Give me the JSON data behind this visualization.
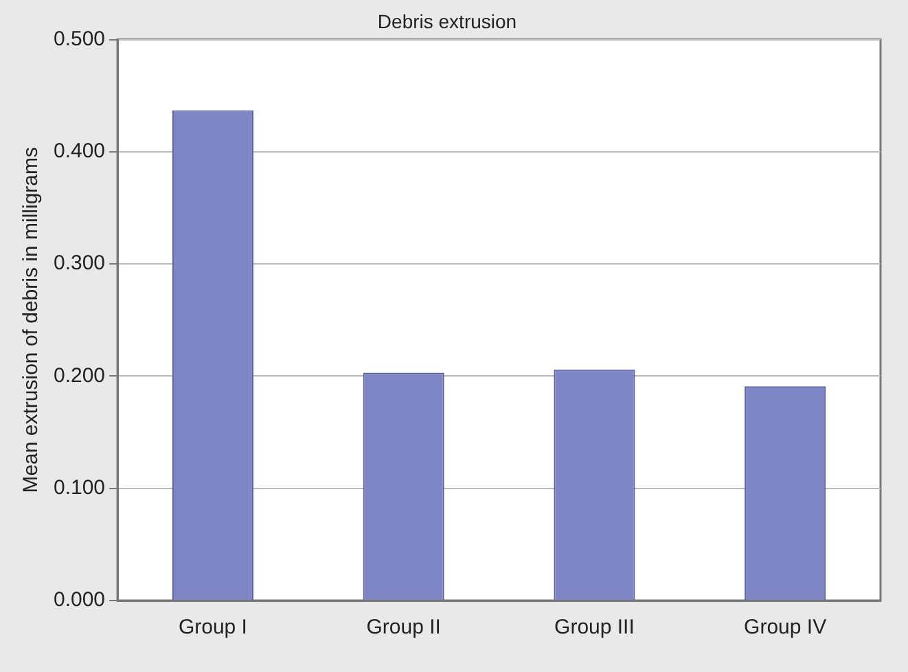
{
  "chart_data": {
    "type": "bar",
    "title": "Debris extrusion",
    "ylabel": "Mean extrusion of debris in milligrams",
    "categories": [
      "Group I",
      "Group II",
      "Group III",
      "Group IV"
    ],
    "values": [
      0.437,
      0.203,
      0.206,
      0.191
    ],
    "color": "#7f86c6",
    "ylim": [
      0,
      0.5
    ],
    "yticks": [
      {
        "value": 0,
        "label": "0.000"
      },
      {
        "value": 0.1,
        "label": "0.100"
      },
      {
        "value": 0.2,
        "label": "0.200"
      },
      {
        "value": 0.3,
        "label": "0.300"
      },
      {
        "value": 0.4,
        "label": "0.400"
      },
      {
        "value": 0.5,
        "label": "0.500"
      }
    ],
    "grid": "y",
    "legend": false
  }
}
